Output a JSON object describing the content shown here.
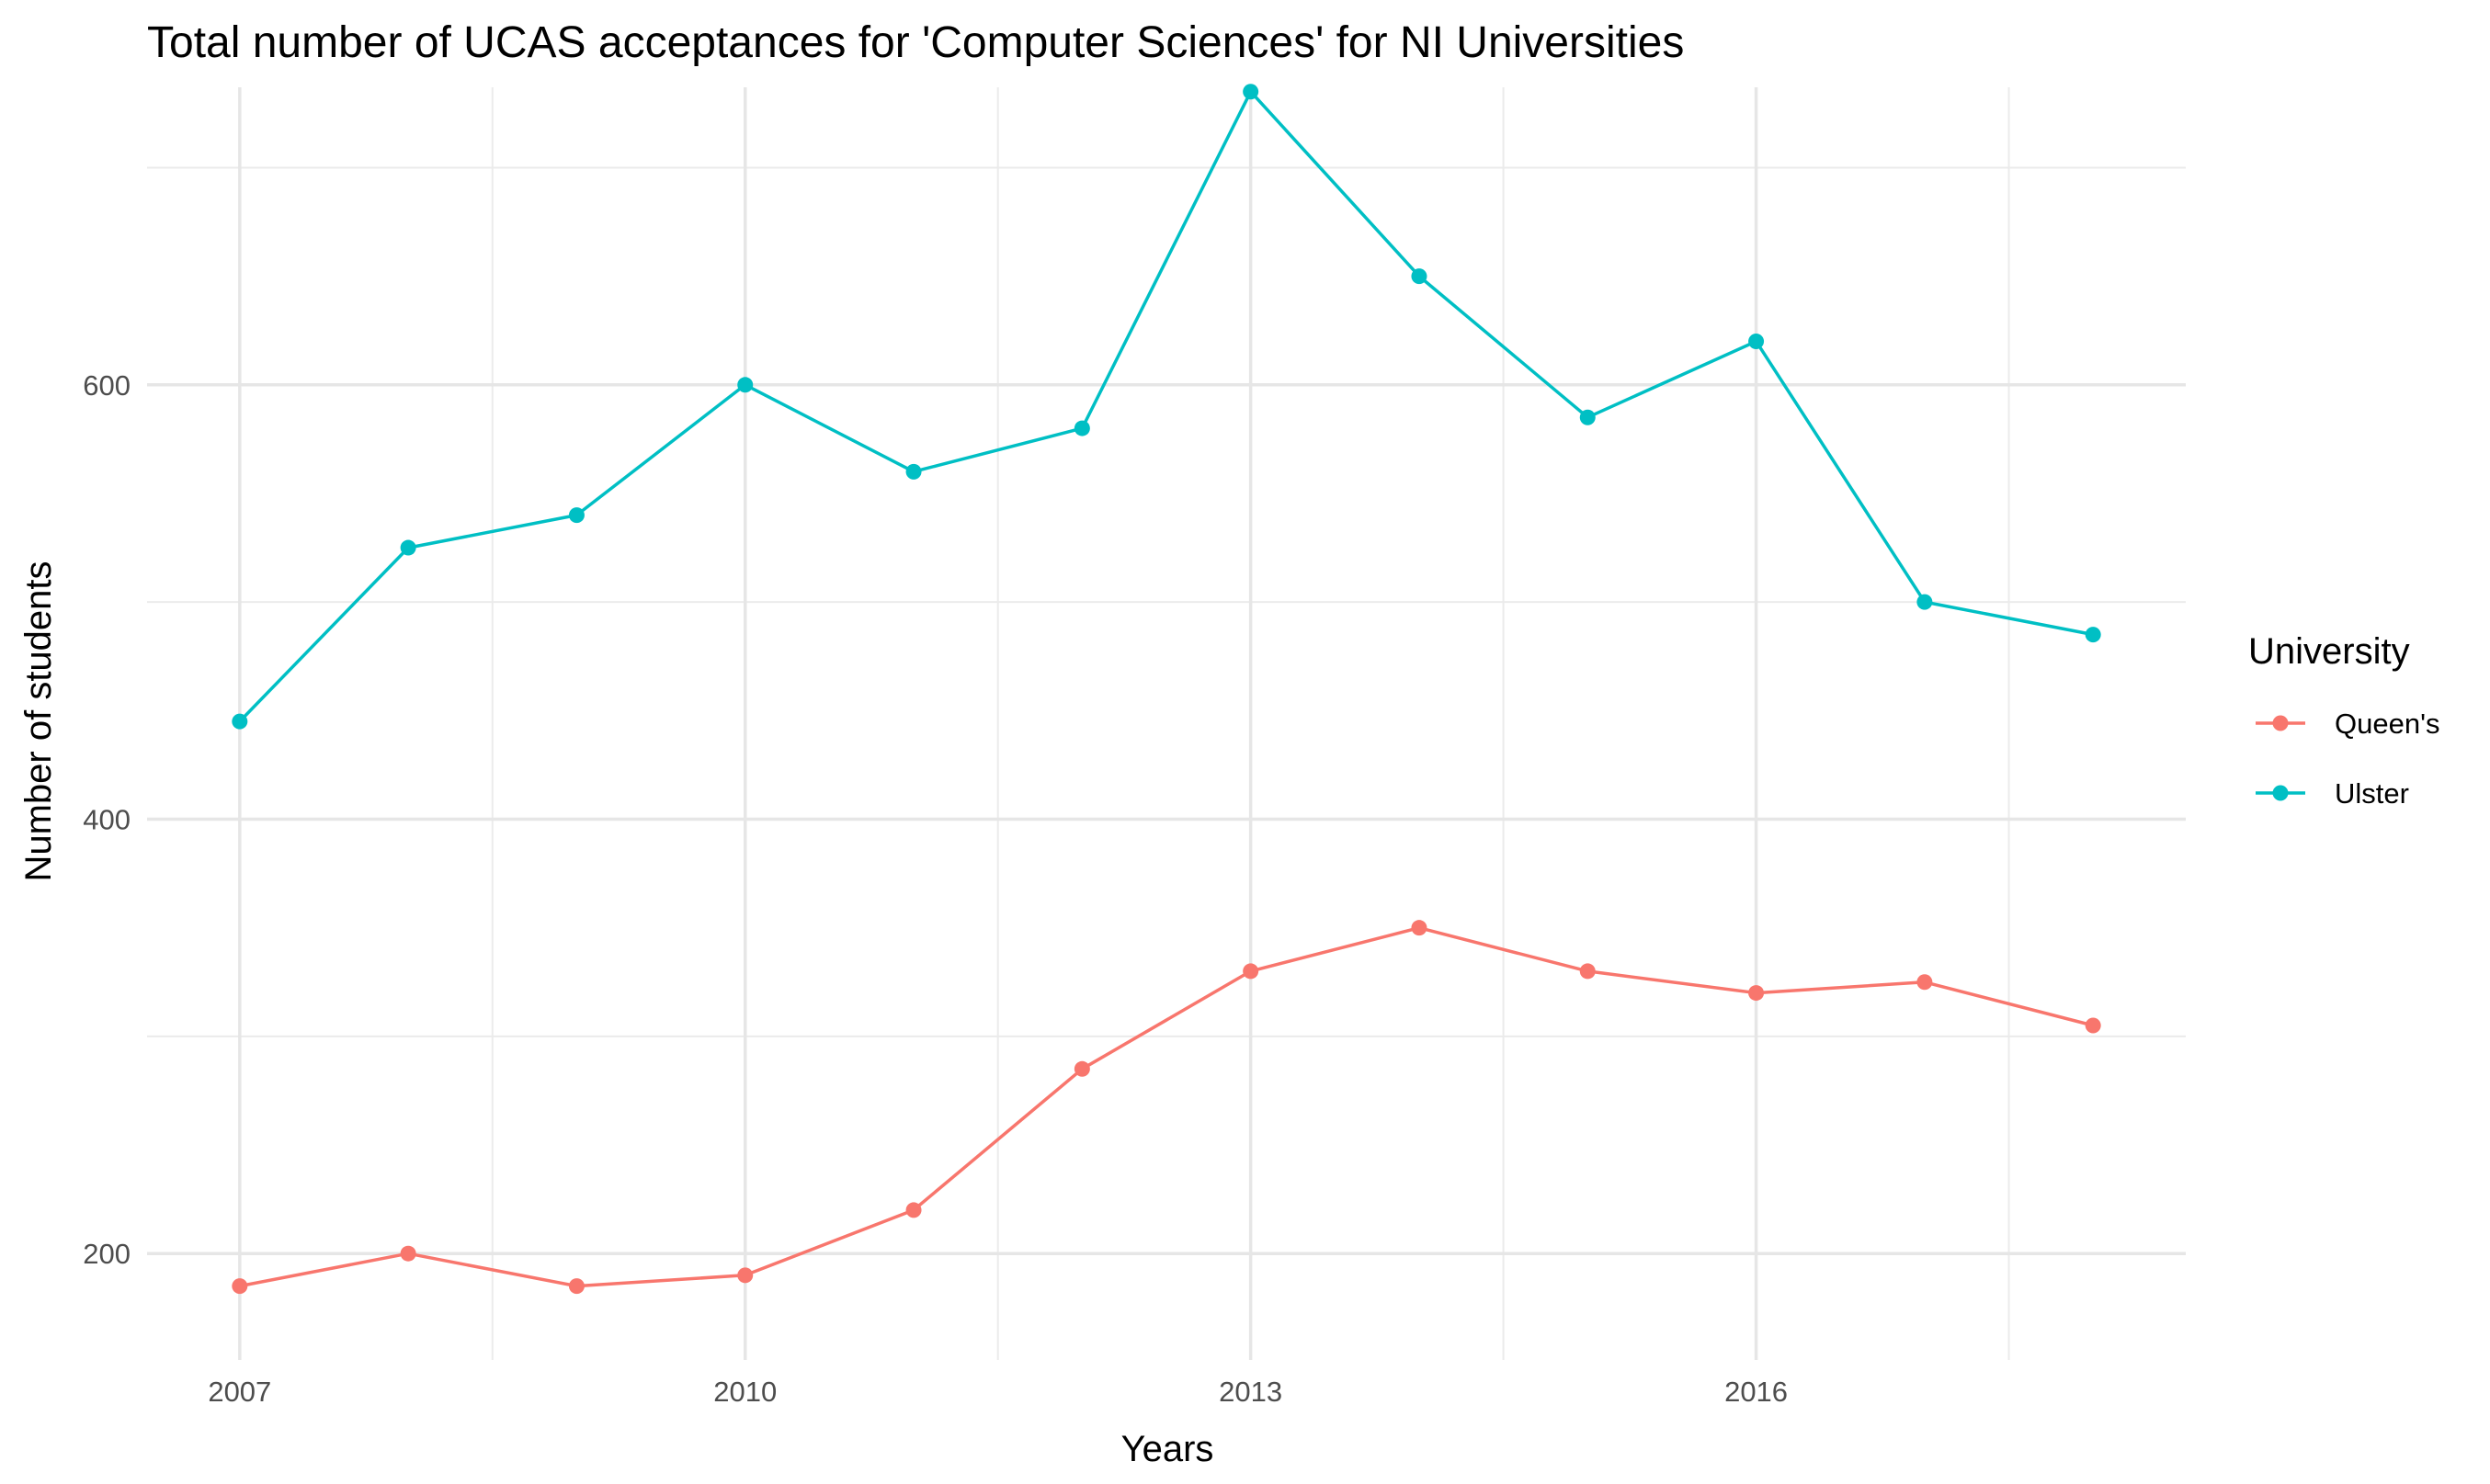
{
  "chart_data": {
    "type": "line",
    "title": "Total number of UCAS acceptances for 'Computer Sciences' for NI Universities",
    "xlabel": "Years",
    "ylabel": "Number of students",
    "x": [
      2007,
      2008,
      2009,
      2010,
      2011,
      2012,
      2013,
      2014,
      2015,
      2016,
      2017,
      2018
    ],
    "xlim": [
      2006.45,
      2018.55
    ],
    "ylim": [
      151,
      737
    ],
    "x_ticks": [
      "2007",
      "2010",
      "2013",
      "2016"
    ],
    "y_ticks": [
      "200",
      "400",
      "600"
    ],
    "grid": true,
    "legend": {
      "title": "University",
      "position": "right"
    },
    "series": [
      {
        "name": "Queen's",
        "color": "#F8766D",
        "values": [
          185,
          200,
          185,
          190,
          220,
          285,
          330,
          350,
          330,
          320,
          325,
          305
        ]
      },
      {
        "name": "Ulster",
        "color": "#00BFC4",
        "values": [
          445,
          525,
          540,
          600,
          560,
          580,
          735,
          650,
          585,
          620,
          500,
          485
        ]
      }
    ]
  }
}
